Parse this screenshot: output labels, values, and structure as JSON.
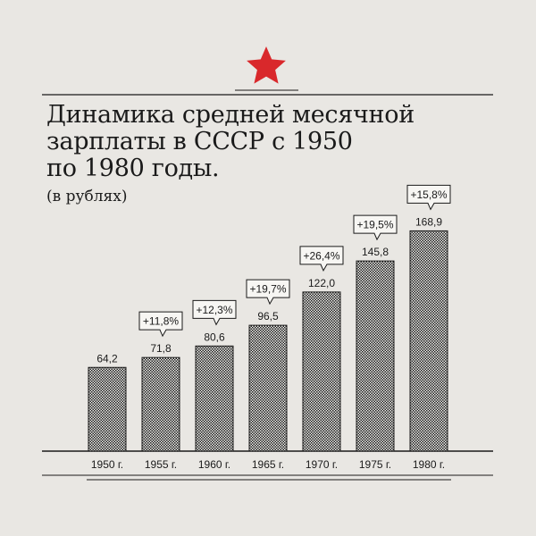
{
  "header": {
    "title_lines": [
      "Динамика средней месячной",
      "зарплаты в СССР с 1950",
      "по 1980 годы."
    ],
    "subtitle": "(в рублях)"
  },
  "colors": {
    "background": "#e9e7e3",
    "star": "#d9282b",
    "ink": "#1a1a1a"
  },
  "chart_data": {
    "type": "bar",
    "title": "Динамика средней месячной зарплаты в СССР с 1950 по 1980 годы.",
    "ylabel": "(в рублях)",
    "categories": [
      "1950 г.",
      "1955 г.",
      "1960 г.",
      "1965 г.",
      "1970 г.",
      "1975 г.",
      "1980 г."
    ],
    "values": [
      64.2,
      71.8,
      80.6,
      96.5,
      122.0,
      145.8,
      168.9
    ],
    "value_labels": [
      "64,2",
      "71,8",
      "80,6",
      "96,5",
      "122,0",
      "145,8",
      "168,9"
    ],
    "growth_labels": [
      "",
      "+11,8%",
      "+12,3%",
      "+19,7%",
      "+26,4%",
      "+19,5%",
      "+15,8%"
    ],
    "ylim": [
      0,
      180
    ],
    "grid": false,
    "legend": "none"
  }
}
